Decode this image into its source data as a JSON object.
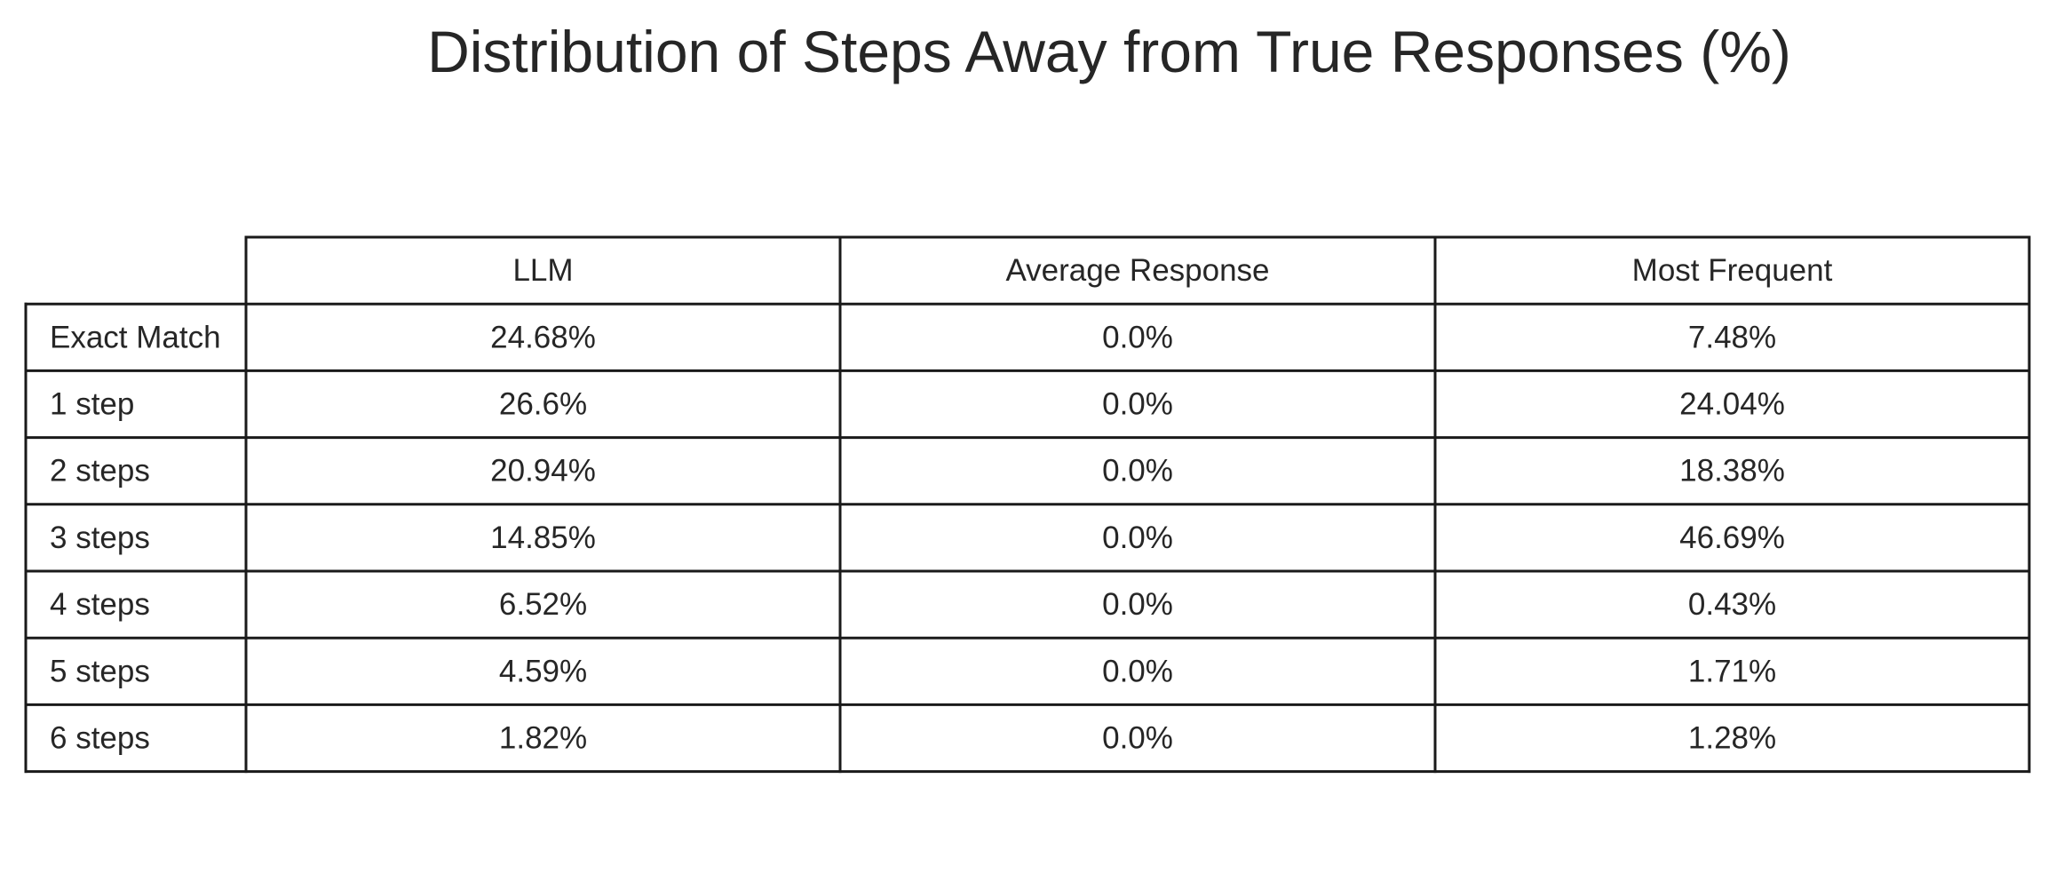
{
  "chart_data": {
    "type": "table",
    "title": "Distribution of Steps Away from True Responses (%)",
    "columns": [
      "LLM",
      "Average Response",
      "Most Frequent"
    ],
    "rows": [
      {
        "label": "Exact Match",
        "values": [
          "24.68%",
          "0.0%",
          "7.48%"
        ]
      },
      {
        "label": "1 step",
        "values": [
          "26.6%",
          "0.0%",
          "24.04%"
        ]
      },
      {
        "label": "2 steps",
        "values": [
          "20.94%",
          "0.0%",
          "18.38%"
        ]
      },
      {
        "label": "3 steps",
        "values": [
          "14.85%",
          "0.0%",
          "46.69%"
        ]
      },
      {
        "label": "4 steps",
        "values": [
          "6.52%",
          "0.0%",
          "0.43%"
        ]
      },
      {
        "label": "5 steps",
        "values": [
          "4.59%",
          "0.0%",
          "1.71%"
        ]
      },
      {
        "label": "6 steps",
        "values": [
          "1.82%",
          "0.0%",
          "1.28%"
        ]
      }
    ],
    "colors": {
      "line": "#1a1a1a",
      "text": "#262626",
      "background": "#ffffff"
    }
  }
}
